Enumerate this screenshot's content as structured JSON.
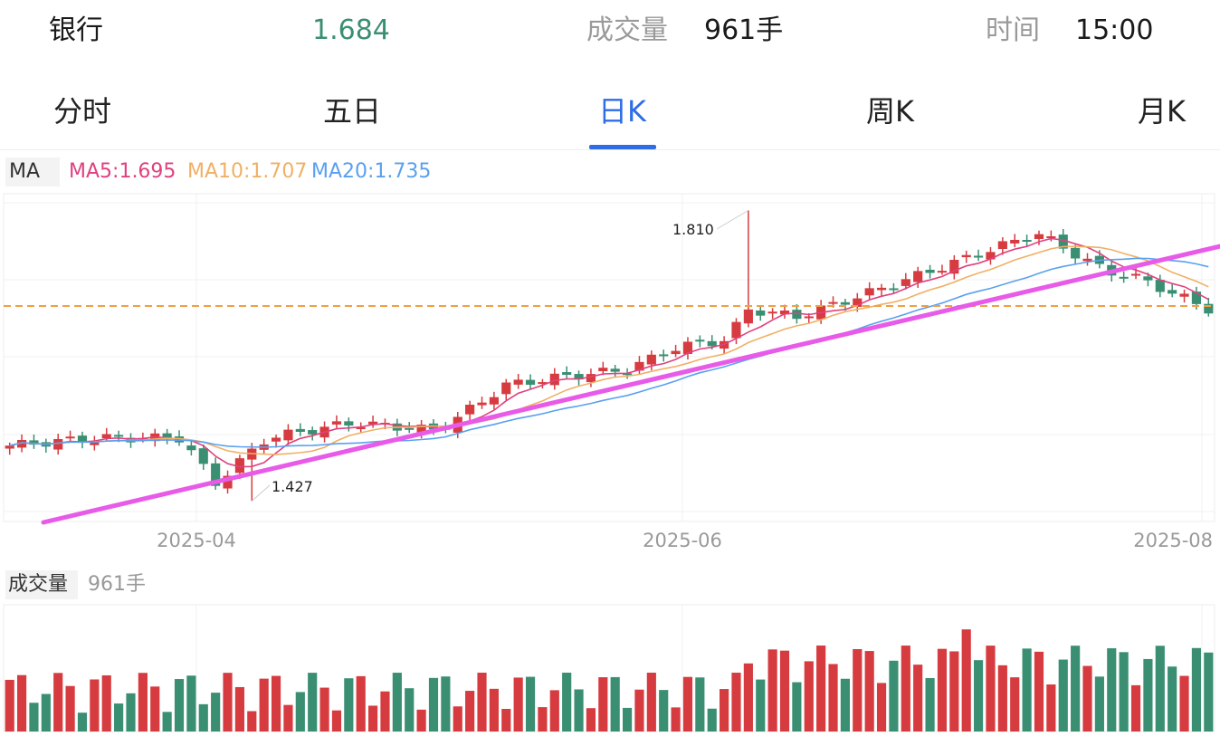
{
  "header": {
    "name": "银行",
    "price": "1.684",
    "volume_label": "成交量",
    "volume_value": "961手",
    "time_label": "时间",
    "time_value": "15:00"
  },
  "tabs": [
    {
      "label": "分时",
      "active": false
    },
    {
      "label": "五日",
      "active": false
    },
    {
      "label": "日K",
      "active": true
    },
    {
      "label": "周K",
      "active": false
    },
    {
      "label": "月K",
      "active": false
    }
  ],
  "ma_legend": {
    "tag": "MA",
    "ma5": "MA5:1.695",
    "ma10": "MA10:1.707",
    "ma20": "MA20:1.735"
  },
  "volume_legend": {
    "tag": "成交量",
    "value": "961手"
  },
  "colors": {
    "up": "#d63b3f",
    "down": "#3a8f73",
    "ma5": "#e0417f",
    "ma10": "#f0b066",
    "ma20": "#5aa0ef",
    "trendline": "#e85ae8",
    "price_line": "#f0a040",
    "active_tab": "#2e6de6"
  },
  "chart_data": {
    "type": "candlestick",
    "x_ticks": [
      "2025-04",
      "2025-06",
      "2025-08"
    ],
    "y_range": [
      1.4,
      1.82
    ],
    "annotations": [
      {
        "label": "1.810",
        "value": 1.81
      },
      {
        "label": "1.427",
        "value": 1.427
      }
    ],
    "current_price": 1.684,
    "grid": true,
    "volume_unit": "手"
  }
}
